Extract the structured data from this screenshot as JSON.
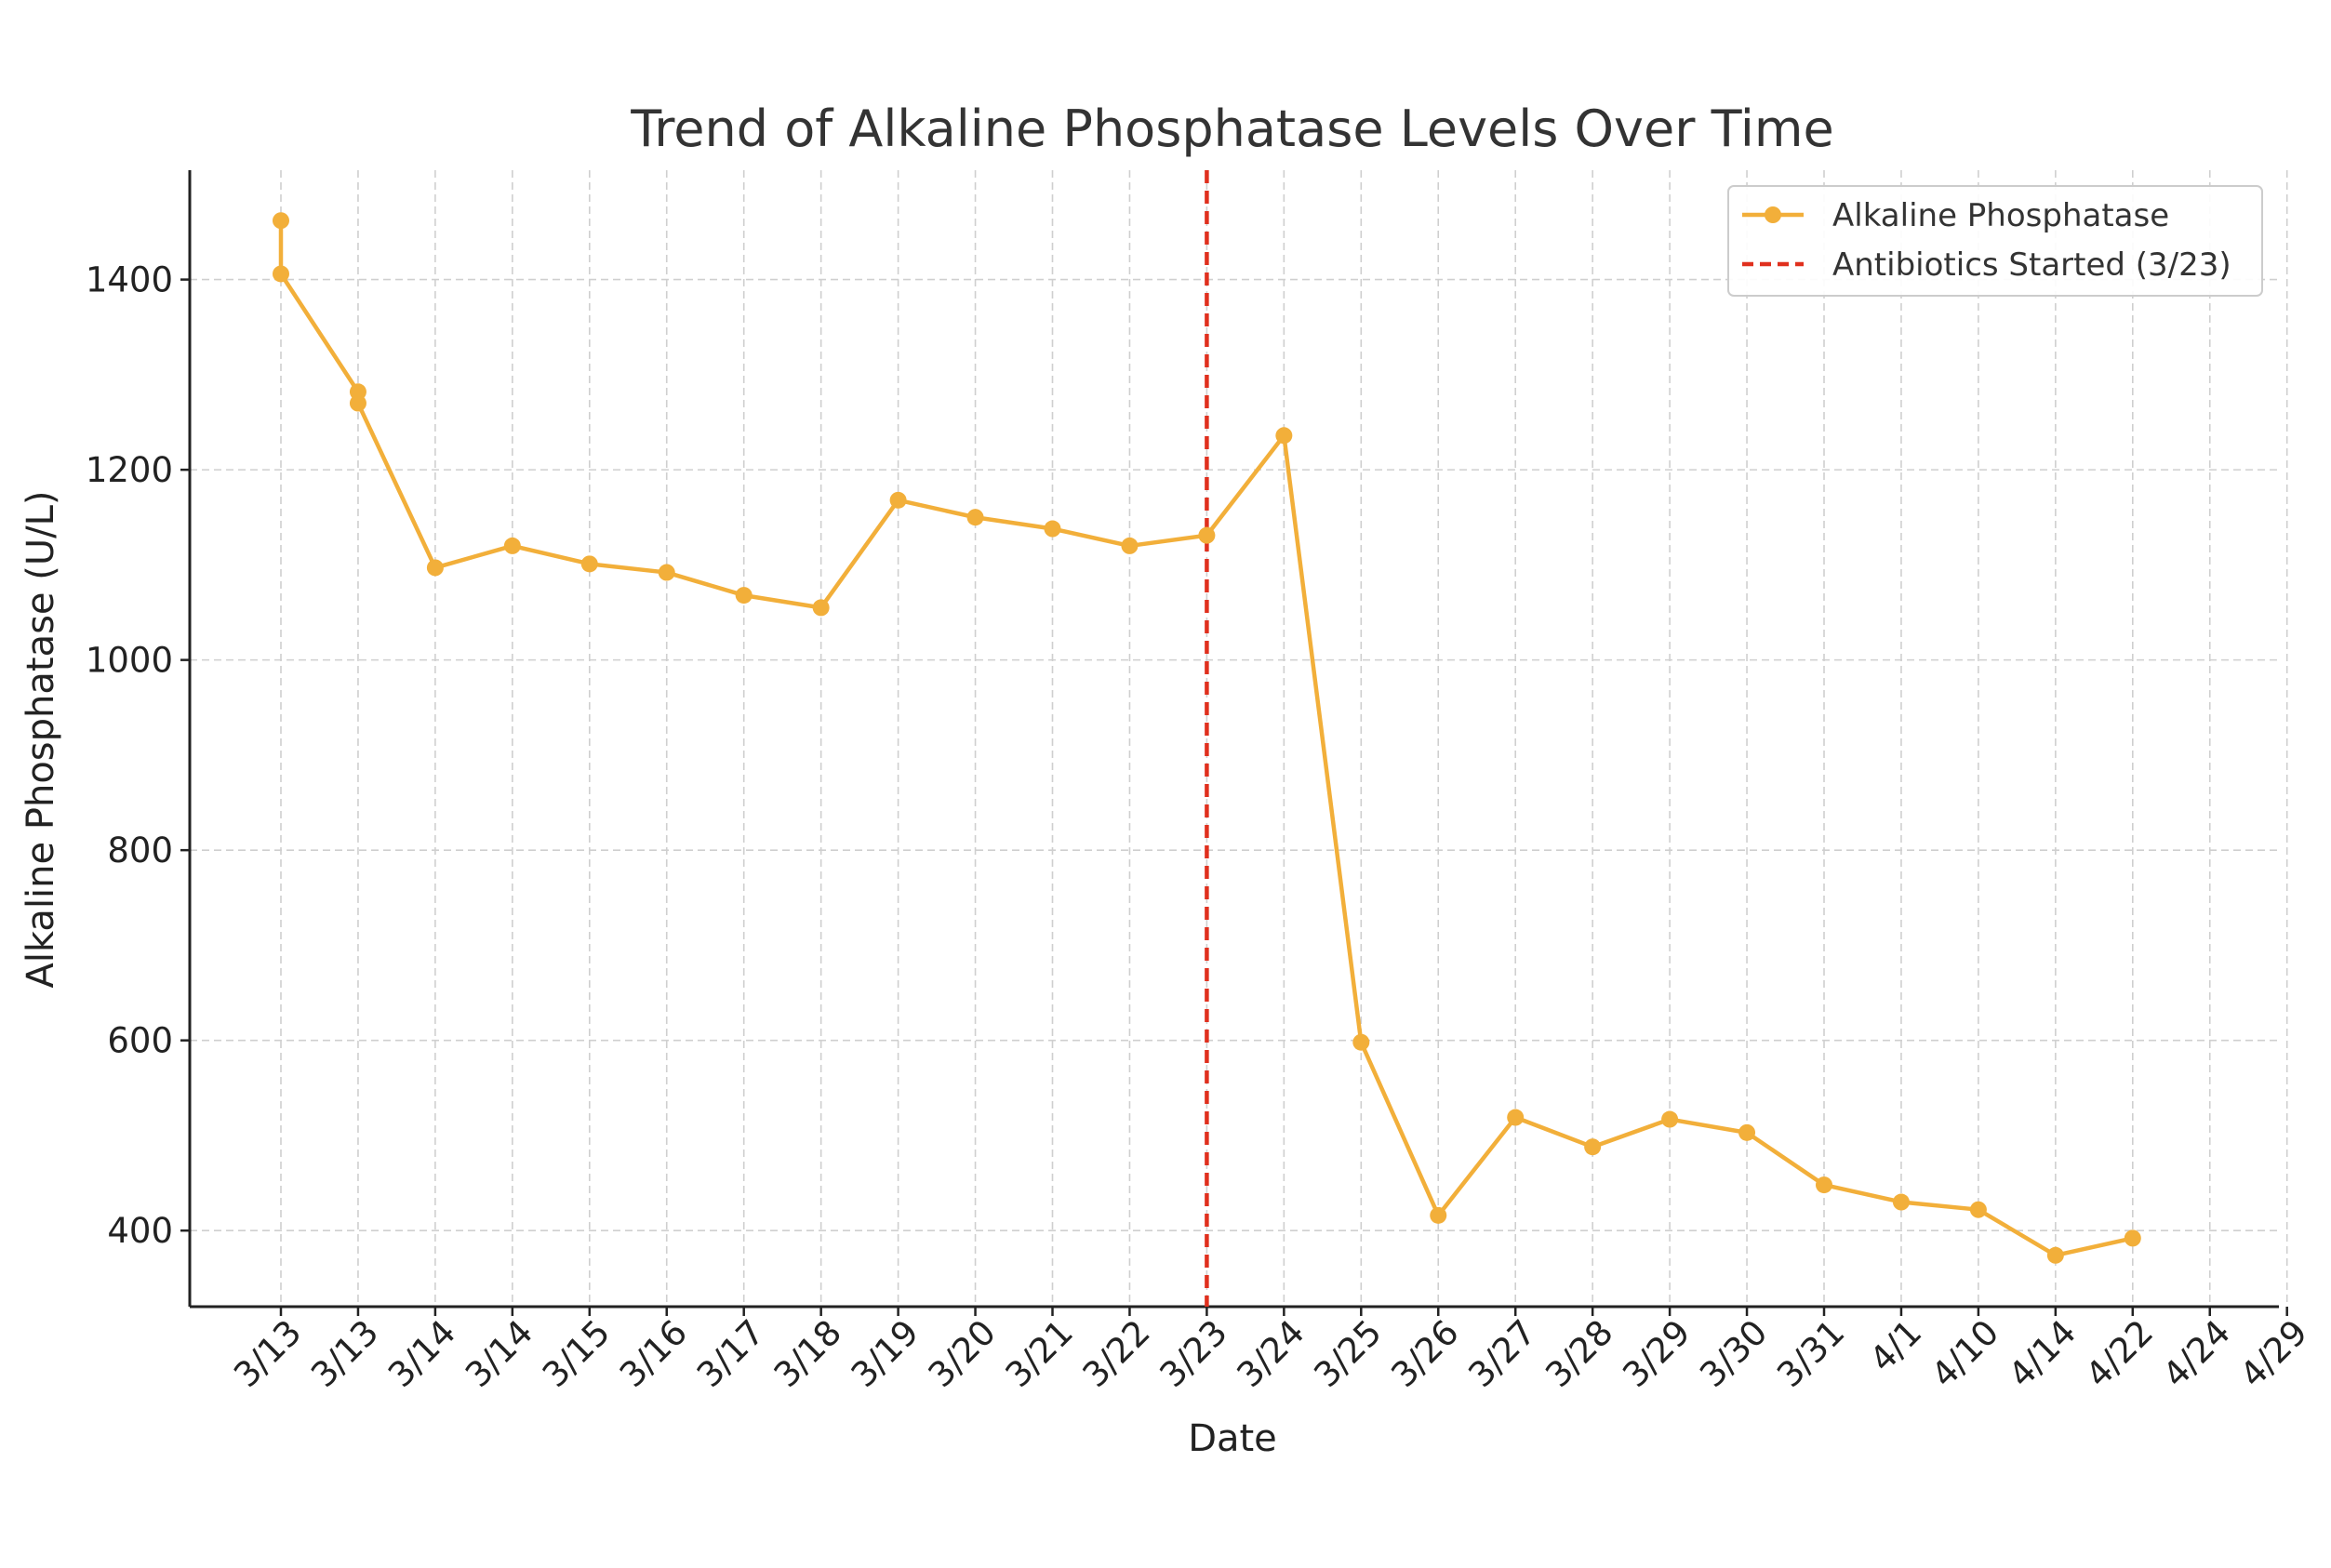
{
  "chart_data": {
    "type": "line",
    "title": "Trend of Alkaline Phosphatase Levels Over Time",
    "xlabel": "Date",
    "ylabel": "Alkaline Phosphatase (U/L)",
    "ylim": [
      320,
      1515
    ],
    "yticks": [
      400,
      600,
      800,
      1000,
      1200,
      1400
    ],
    "grid": true,
    "legend": "top-right",
    "categories": [
      "3/13",
      "3/13",
      "3/14",
      "3/14",
      "3/15",
      "3/16",
      "3/17",
      "3/18",
      "3/19",
      "3/20",
      "3/21",
      "3/22",
      "3/23",
      "3/24",
      "3/25",
      "3/26",
      "3/27",
      "3/28",
      "3/29",
      "3/30",
      "3/31",
      "4/1",
      "4/10",
      "4/14",
      "4/22",
      "4/24",
      "4/29"
    ],
    "series": [
      {
        "name": "Alkaline Phosphatase",
        "color": "#F2AF3A",
        "points": [
          {
            "x": "3/13",
            "y": 1462
          },
          {
            "x": "3/13",
            "y": 1406
          },
          {
            "x": "3/13",
            "y": 1282
          },
          {
            "x": "3/13",
            "y": 1270
          },
          {
            "x": "3/14",
            "y": 1097
          },
          {
            "x": "3/14",
            "y": 1120
          },
          {
            "x": "3/15",
            "y": 1101
          },
          {
            "x": "3/16",
            "y": 1092
          },
          {
            "x": "3/17",
            "y": 1068
          },
          {
            "x": "3/18",
            "y": 1055
          },
          {
            "x": "3/19",
            "y": 1168
          },
          {
            "x": "3/20",
            "y": 1150
          },
          {
            "x": "3/21",
            "y": 1138
          },
          {
            "x": "3/22",
            "y": 1120
          },
          {
            "x": "3/23",
            "y": 1131
          },
          {
            "x": "3/24",
            "y": 1236
          },
          {
            "x": "3/25",
            "y": 598
          },
          {
            "x": "3/26",
            "y": 416
          },
          {
            "x": "3/27",
            "y": 519
          },
          {
            "x": "3/28",
            "y": 488
          },
          {
            "x": "3/29",
            "y": 517
          },
          {
            "x": "3/30",
            "y": 503
          },
          {
            "x": "3/31",
            "y": 448
          },
          {
            "x": "4/1",
            "y": 430
          },
          {
            "x": "4/10",
            "y": 422
          },
          {
            "x": "4/14",
            "y": 374
          },
          {
            "x": "4/22",
            "y": 392
          }
        ]
      }
    ],
    "vline": {
      "name": "Antibiotics Started (3/23)",
      "x": "3/23",
      "color": "#E0301E",
      "style": "dashed"
    }
  }
}
